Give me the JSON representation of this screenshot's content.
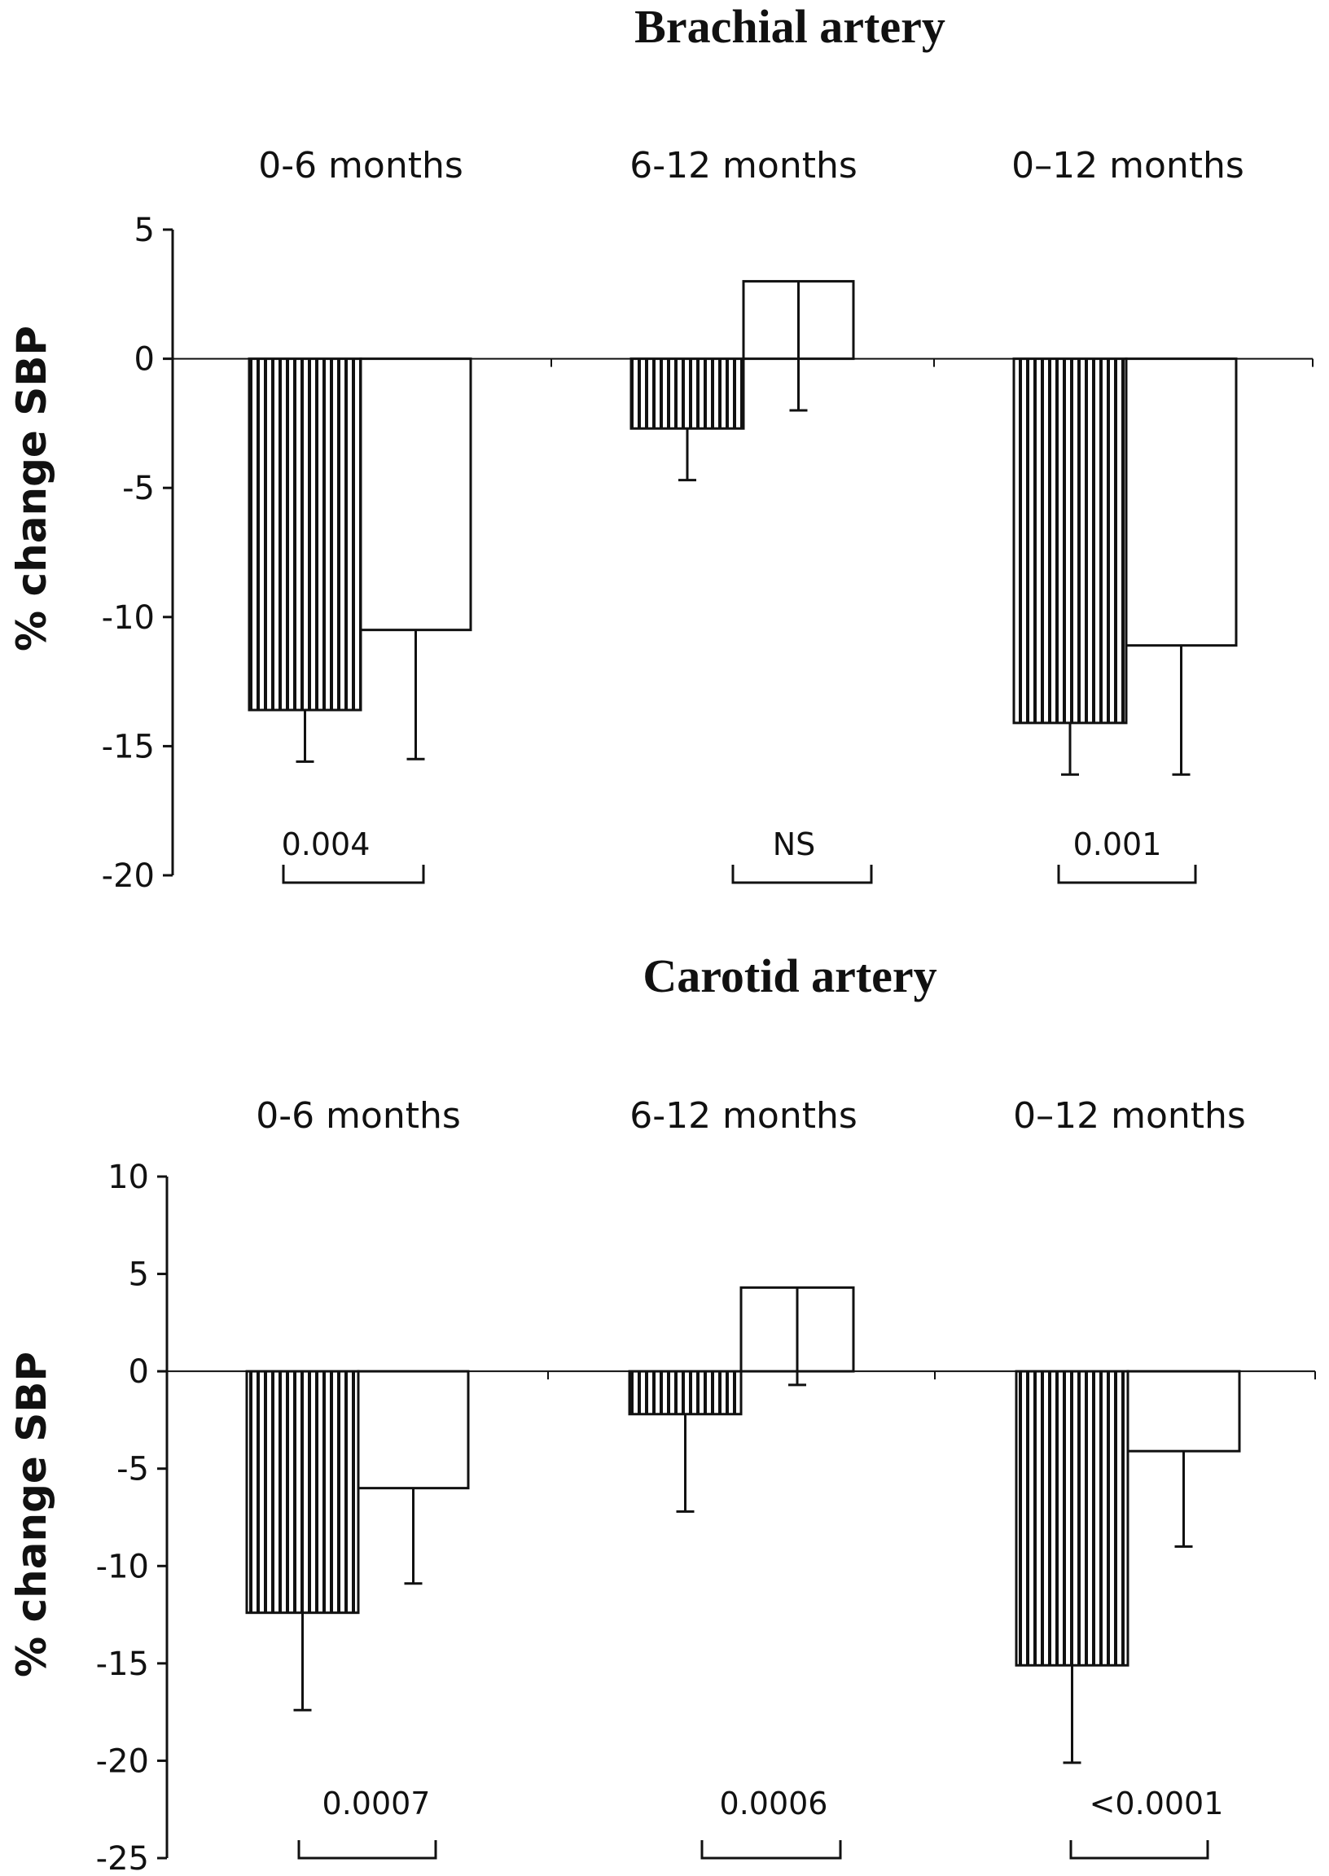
{
  "chart_data": [
    {
      "type": "bar",
      "title": "Brachial artery",
      "ylabel": "% change SBP",
      "xlabel": "",
      "categories": [
        "0-6 months",
        "6-12 months",
        "0–12 months"
      ],
      "ylim": [
        -20,
        5
      ],
      "yticks": [
        5,
        0,
        -5,
        -10,
        -15,
        -20
      ],
      "grid": false,
      "legend": "none",
      "series": [
        {
          "pattern": "vertical-stripes",
          "values": [
            -13.6,
            -2.7,
            -14.1
          ],
          "error_bars": [
            2.0,
            2.0,
            2.0
          ]
        },
        {
          "pattern": "open",
          "values": [
            -10.5,
            3.0,
            -11.1
          ],
          "error_bars": [
            5.0,
            5.0,
            5.0
          ]
        }
      ],
      "p_values": [
        "0.004",
        "NS",
        "0.001"
      ]
    },
    {
      "type": "bar",
      "title": "Carotid artery",
      "ylabel": "% change SBP",
      "xlabel": "",
      "categories": [
        "0-6 months",
        "6-12 months",
        "0–12 months"
      ],
      "ylim": [
        -25,
        10
      ],
      "yticks": [
        10,
        5,
        0,
        -5,
        -10,
        -15,
        -20,
        -25
      ],
      "grid": false,
      "legend": "none",
      "series": [
        {
          "pattern": "vertical-stripes",
          "values": [
            -12.4,
            -2.2,
            -15.1
          ],
          "error_bars": [
            5.0,
            5.0,
            5.0
          ]
        },
        {
          "pattern": "open",
          "values": [
            -6.0,
            4.3,
            -4.1
          ],
          "error_bars": [
            4.9,
            5.0,
            4.9
          ]
        }
      ],
      "p_values": [
        "0.0007",
        "0.0006",
        "<0.0001"
      ]
    }
  ],
  "colors": {
    "ink": "#111111",
    "stripe_fill": "#8f8f8f",
    "open_fill": "#ffffff"
  }
}
